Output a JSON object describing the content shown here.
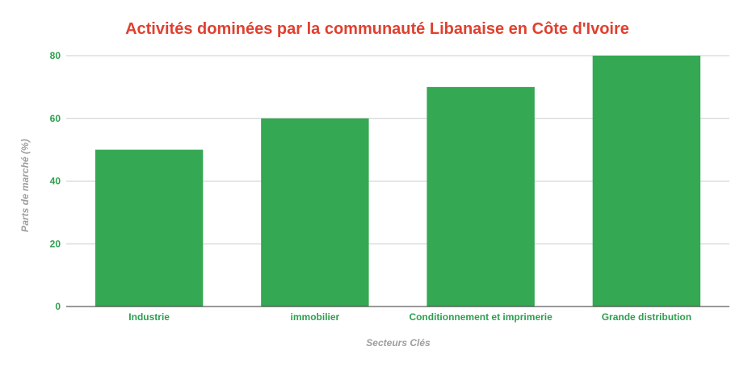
{
  "colors": {
    "title": "#e0402f",
    "bar": "#34a853",
    "tick_label": "#2e9e4f",
    "axis_title": "#9e9e9e",
    "grid": "#cccccc",
    "baseline": "#333333"
  },
  "chart_data": {
    "type": "bar",
    "title": "Activités dominées par la communauté Libanaise en Côte d'Ivoire",
    "xlabel": "Secteurs Clés",
    "ylabel": "Parts de marché (%)",
    "categories": [
      "Industrie",
      "immobilier",
      "Conditionnement et imprimerie",
      "Grande distribution"
    ],
    "values": [
      50,
      60,
      70,
      80
    ],
    "ylim": [
      0,
      80
    ],
    "yticks": [
      0,
      20,
      40,
      60,
      80
    ],
    "grid": true,
    "legend": "none"
  }
}
